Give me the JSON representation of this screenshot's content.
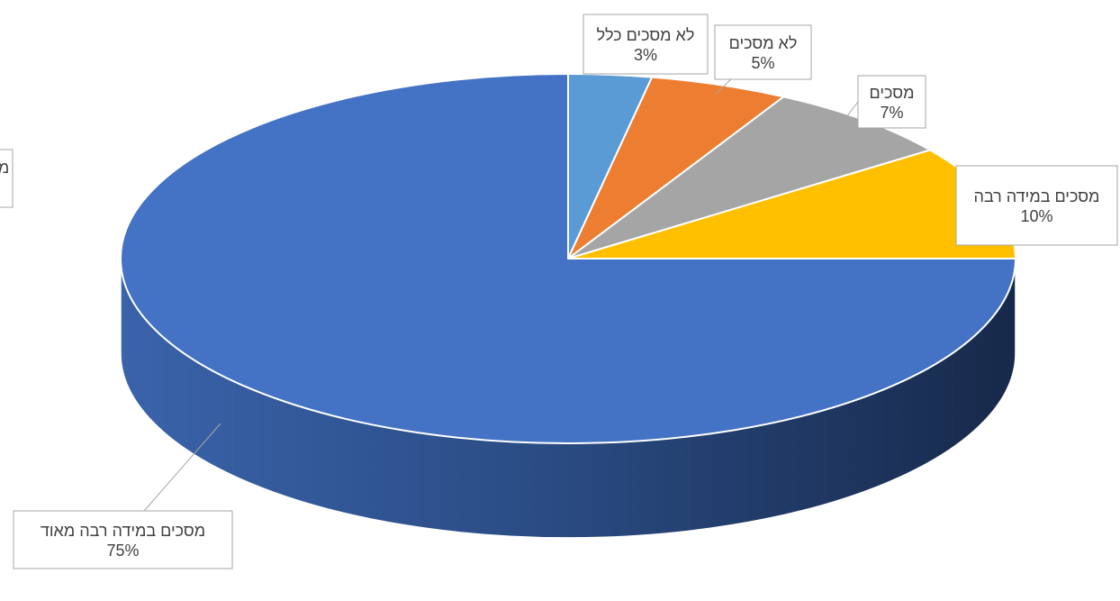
{
  "chart_data": {
    "type": "pie",
    "title": "",
    "style": "3d",
    "slices": [
      {
        "label": "לא מסכים כלל",
        "value": 3,
        "value_label": "3%",
        "color": "#5b9bd5"
      },
      {
        "label": "לא מסכים",
        "value": 5,
        "value_label": "5%",
        "color": "#ed7d31"
      },
      {
        "label": "מסכים",
        "value": 7,
        "value_label": "7%",
        "color": "#a5a5a5"
      },
      {
        "label": "מסכים במידה רבה",
        "value": 10,
        "value_label": "10%",
        "color": "#ffc000"
      },
      {
        "label": "מסכים במידה רבה מאוד",
        "value": 75,
        "value_label": "75%",
        "color": "#4472c4"
      }
    ],
    "offpage_label_fragment": "מ"
  }
}
